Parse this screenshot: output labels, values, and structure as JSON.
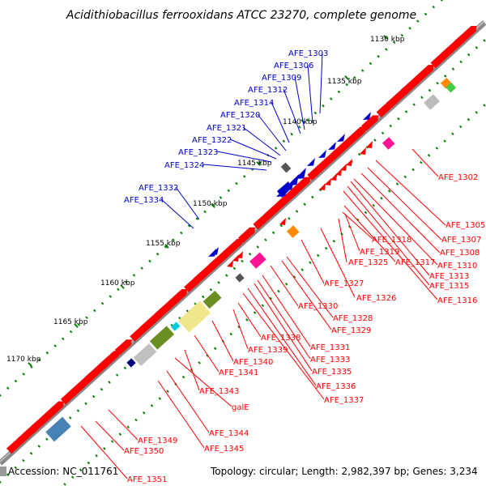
{
  "title": "Acidithiobacillus ferrooxidans ATCC 23270, complete genome",
  "footer": {
    "accession": "Accession: NC_011761",
    "summary": "Topology: circular; Length: 2,982,397 bp; Genes: 3,234"
  },
  "colors": {
    "forward": "#0000cc",
    "reverse": "#ff0000",
    "backbone": "#808080",
    "tick": "#008000"
  },
  "coordinates": [
    {
      "label": "1130 kbp"
    },
    {
      "label": "1135 kbp"
    },
    {
      "label": "1140 kbp"
    },
    {
      "label": "1145 kbp"
    },
    {
      "label": "1150 kbp"
    },
    {
      "label": "1155 kbp"
    },
    {
      "label": "1160 kbp"
    },
    {
      "label": "1165 kbp"
    },
    {
      "label": "1170 kbp"
    }
  ],
  "forward_genes": [
    {
      "label": "AFE_1303"
    },
    {
      "label": "AFE_1306"
    },
    {
      "label": "AFE_1309"
    },
    {
      "label": "AFE_1312"
    },
    {
      "label": "AFE_1314"
    },
    {
      "label": "AFE_1320"
    },
    {
      "label": "AFE_1321"
    },
    {
      "label": "AFE_1322"
    },
    {
      "label": "AFE_1323"
    },
    {
      "label": "AFE_1324"
    },
    {
      "label": "AFE_1332"
    },
    {
      "label": "AFE_1334"
    }
  ],
  "reverse_genes": [
    {
      "label": "AFE_1302"
    },
    {
      "label": "AFE_1305"
    },
    {
      "label": "AFE_1307"
    },
    {
      "label": "AFE_1308"
    },
    {
      "label": "AFE_1310"
    },
    {
      "label": "AFE_1313"
    },
    {
      "label": "AFE_1315"
    },
    {
      "label": "AFE_1316"
    },
    {
      "label": "AFE_1317"
    },
    {
      "label": "AFE_1318"
    },
    {
      "label": "AFE_1319"
    },
    {
      "label": "AFE_1325"
    },
    {
      "label": "AFE_1326"
    },
    {
      "label": "AFE_1327"
    },
    {
      "label": "AFE_1328"
    },
    {
      "label": "AFE_1329"
    },
    {
      "label": "AFE_1330"
    },
    {
      "label": "AFE_1331"
    },
    {
      "label": "AFE_1333"
    },
    {
      "label": "AFE_1335"
    },
    {
      "label": "AFE_1336"
    },
    {
      "label": "AFE_1337"
    },
    {
      "label": "AFE_1338"
    },
    {
      "label": "AFE_1339"
    },
    {
      "label": "AFE_1340"
    },
    {
      "label": "AFE_1341"
    },
    {
      "label": "AFE_1343"
    },
    {
      "label": "galE"
    },
    {
      "label": "AFE_1344"
    },
    {
      "label": "AFE_1345"
    },
    {
      "label": "AFE_1349"
    },
    {
      "label": "AFE_1350"
    },
    {
      "label": "AFE_1351"
    }
  ]
}
